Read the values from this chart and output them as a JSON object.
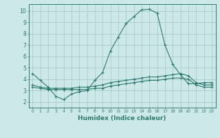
{
  "xlabel": "Humidex (Indice chaleur)",
  "ylabel": "",
  "background_color": "#cce8e8",
  "line_color": "#2d7a70",
  "grid_color": "#aacccc",
  "xlim": [
    -0.5,
    23.5
  ],
  "ylim": [
    1.5,
    10.6
  ],
  "xtick_labels": [
    "0",
    "1",
    "2",
    "3",
    "4",
    "5",
    "6",
    "7",
    "8",
    "9",
    "10",
    "11",
    "12",
    "13",
    "14",
    "15",
    "16",
    "17",
    "18",
    "19",
    "20",
    "21",
    "22",
    "23"
  ],
  "ytick_labels": [
    "2",
    "3",
    "4",
    "5",
    "6",
    "7",
    "8",
    "9",
    "10"
  ],
  "line1_x": [
    0,
    1,
    2,
    3,
    4,
    5,
    6,
    7,
    8,
    9,
    10,
    11,
    12,
    13,
    14,
    15,
    16,
    17,
    18,
    19,
    20,
    21,
    22,
    23
  ],
  "line1_y": [
    4.5,
    3.9,
    3.3,
    2.5,
    2.2,
    2.7,
    2.9,
    3.0,
    3.9,
    4.6,
    6.5,
    7.7,
    8.9,
    9.5,
    10.1,
    10.15,
    9.8,
    7.0,
    5.3,
    4.4,
    3.6,
    3.6,
    3.7,
    3.7
  ],
  "line2_x": [
    0,
    1,
    2,
    3,
    4,
    5,
    6,
    7,
    8,
    9,
    10,
    11,
    12,
    13,
    14,
    15,
    16,
    17,
    18,
    19,
    20,
    21,
    22,
    23
  ],
  "line2_y": [
    3.5,
    3.3,
    3.2,
    3.2,
    3.2,
    3.2,
    3.3,
    3.3,
    3.4,
    3.5,
    3.7,
    3.8,
    3.9,
    4.0,
    4.1,
    4.2,
    4.2,
    4.3,
    4.4,
    4.5,
    4.3,
    3.7,
    3.5,
    3.5
  ],
  "line3_x": [
    0,
    1,
    2,
    3,
    4,
    5,
    6,
    7,
    8,
    9,
    10,
    11,
    12,
    13,
    14,
    15,
    16,
    17,
    18,
    19,
    20,
    21,
    22,
    23
  ],
  "line3_y": [
    3.3,
    3.2,
    3.1,
    3.1,
    3.1,
    3.1,
    3.1,
    3.1,
    3.2,
    3.2,
    3.4,
    3.5,
    3.6,
    3.7,
    3.8,
    3.9,
    3.9,
    4.0,
    4.1,
    4.1,
    4.0,
    3.5,
    3.3,
    3.3
  ]
}
